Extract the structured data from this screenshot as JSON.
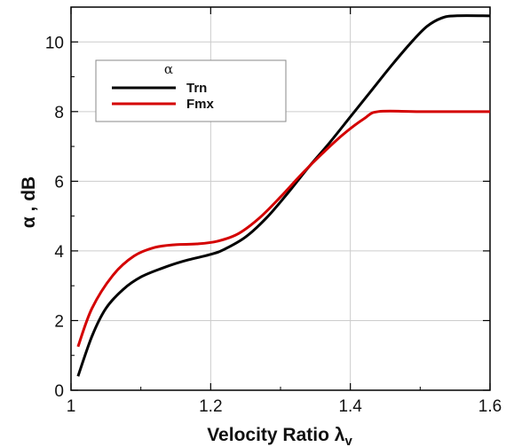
{
  "chart_data": {
    "type": "line",
    "xlabel": "Velocity Ratio λ",
    "xlabel_subscript": "v",
    "ylabel": "α , dB",
    "xlim": [
      1.0,
      1.6
    ],
    "ylim": [
      0,
      11
    ],
    "x_ticks": [
      1,
      1.2,
      1.4,
      1.6
    ],
    "x_tick_labels": [
      "1",
      "1.2",
      "1.4",
      "1.6"
    ],
    "y_ticks": [
      0,
      2,
      4,
      6,
      8,
      10
    ],
    "y_tick_labels": [
      "0",
      "2",
      "4",
      "6",
      "8",
      "10"
    ],
    "grid": true,
    "legend_title": "α",
    "legend_position": "top-left",
    "series": [
      {
        "name": "Trn",
        "color": "#000000",
        "points": [
          [
            1.01,
            0.4
          ],
          [
            1.03,
            1.55
          ],
          [
            1.05,
            2.35
          ],
          [
            1.075,
            2.9
          ],
          [
            1.1,
            3.25
          ],
          [
            1.13,
            3.5
          ],
          [
            1.16,
            3.7
          ],
          [
            1.2,
            3.9
          ],
          [
            1.22,
            4.05
          ],
          [
            1.25,
            4.4
          ],
          [
            1.28,
            4.95
          ],
          [
            1.31,
            5.65
          ],
          [
            1.34,
            6.4
          ],
          [
            1.37,
            7.1
          ],
          [
            1.4,
            7.85
          ],
          [
            1.43,
            8.6
          ],
          [
            1.46,
            9.35
          ],
          [
            1.49,
            10.05
          ],
          [
            1.51,
            10.45
          ],
          [
            1.53,
            10.68
          ],
          [
            1.55,
            10.75
          ],
          [
            1.6,
            10.75
          ]
        ]
      },
      {
        "name": "Fmx",
        "color": "#d40000",
        "points": [
          [
            1.01,
            1.25
          ],
          [
            1.03,
            2.35
          ],
          [
            1.06,
            3.3
          ],
          [
            1.09,
            3.85
          ],
          [
            1.12,
            4.1
          ],
          [
            1.15,
            4.18
          ],
          [
            1.18,
            4.2
          ],
          [
            1.21,
            4.28
          ],
          [
            1.24,
            4.5
          ],
          [
            1.27,
            4.95
          ],
          [
            1.3,
            5.55
          ],
          [
            1.33,
            6.2
          ],
          [
            1.36,
            6.8
          ],
          [
            1.39,
            7.35
          ],
          [
            1.42,
            7.8
          ],
          [
            1.44,
            8.0
          ],
          [
            1.5,
            8.0
          ],
          [
            1.6,
            8.0
          ]
        ]
      }
    ]
  }
}
